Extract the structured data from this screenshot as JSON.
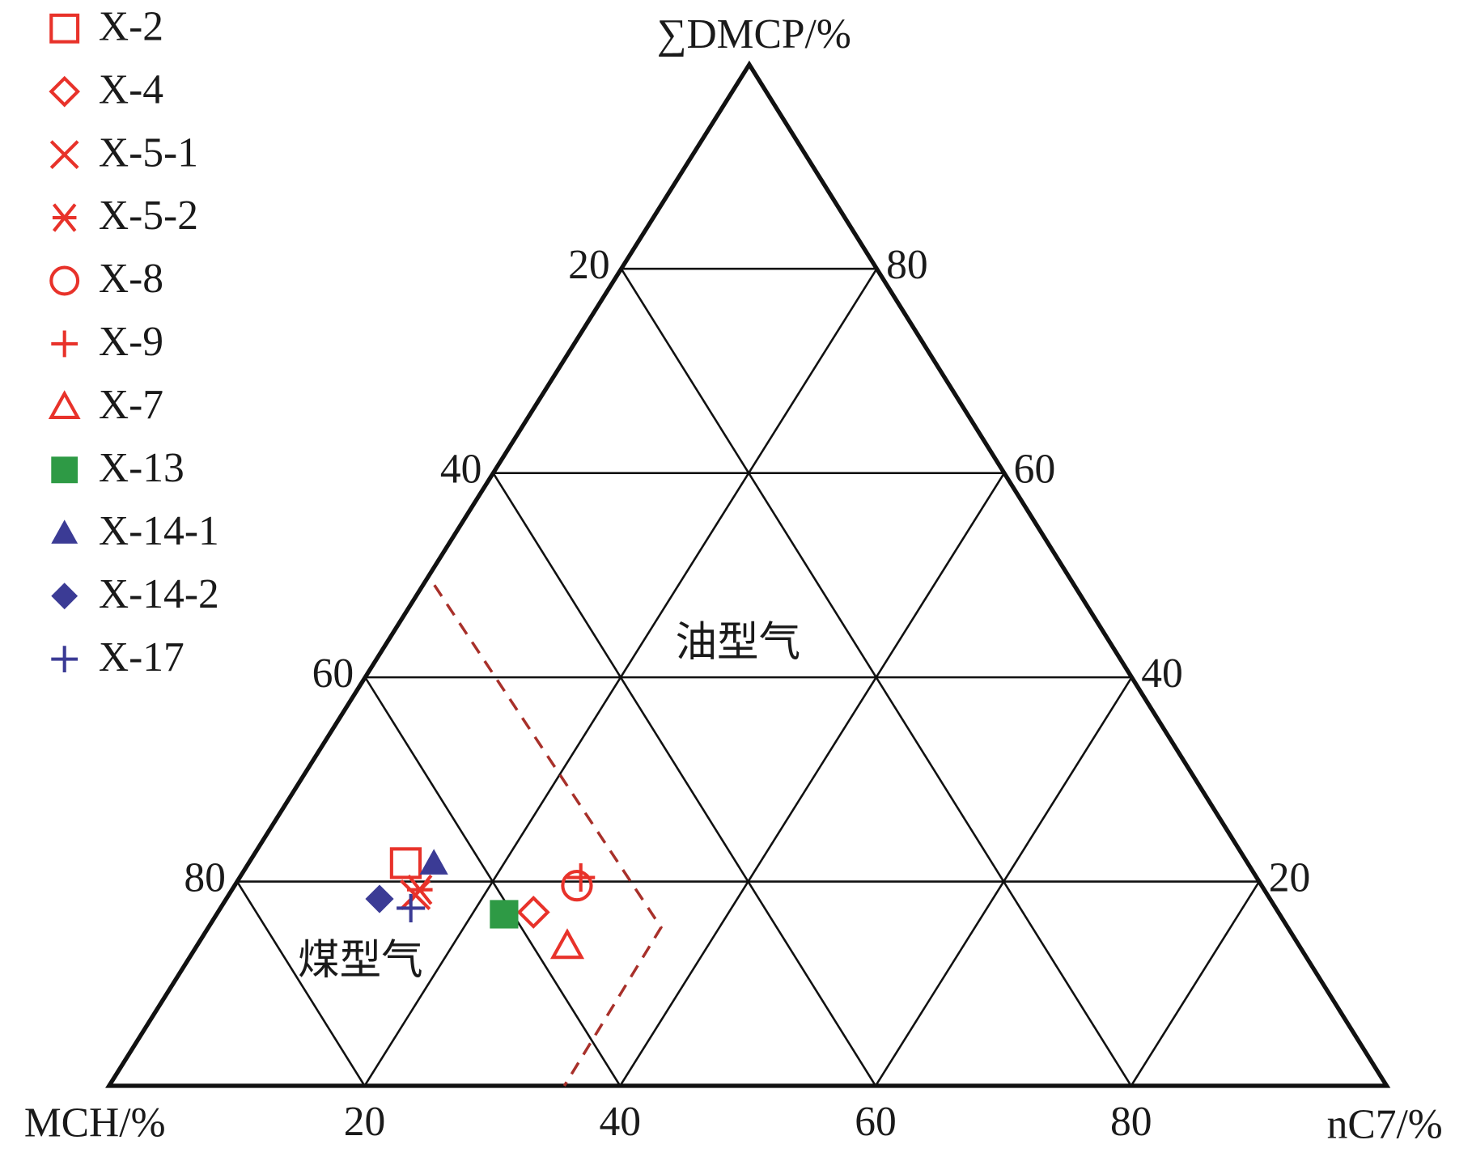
{
  "chart_data": {
    "type": "ternary",
    "axes": [
      {
        "name": "MCH/%",
        "ticks": [
          20,
          40,
          60,
          80
        ]
      },
      {
        "name": "∑DMCP/%",
        "ticks": [
          20,
          40,
          60,
          80
        ]
      },
      {
        "name": "nC7/%",
        "ticks": [
          20,
          40,
          60,
          80
        ]
      }
    ],
    "regions": [
      "油型气",
      "煤型气"
    ],
    "grid": true,
    "legend": "upper left",
    "series": [
      {
        "name": "X-2",
        "color": "#e8322a",
        "marker": "square-open",
        "values": [
          65.9,
          21.8,
          12.3
        ]
      },
      {
        "name": "X-4",
        "color": "#e8322a",
        "marker": "diamond-open",
        "values": [
          58.3,
          17.0,
          24.7
        ]
      },
      {
        "name": "X-5-1",
        "color": "#e8322a",
        "marker": "x",
        "values": [
          66.7,
          18.7,
          14.6
        ]
      },
      {
        "name": "X-5-2",
        "color": "#e8322a",
        "marker": "asterisk",
        "values": [
          66.1,
          19.2,
          14.7
        ]
      },
      {
        "name": "X-8",
        "color": "#e8322a",
        "marker": "circle-open",
        "values": [
          53.6,
          19.6,
          26.8
        ]
      },
      {
        "name": "X-9",
        "color": "#e8322a",
        "marker": "plus",
        "values": [
          52.9,
          20.4,
          26.7
        ]
      },
      {
        "name": "X-7",
        "color": "#e8322a",
        "marker": "triangle-open",
        "values": [
          57.3,
          13.7,
          29.0
        ]
      },
      {
        "name": "X-13",
        "color": "#2e9a45",
        "marker": "square",
        "values": [
          60.7,
          16.8,
          22.5
        ]
      },
      {
        "name": "X-14-1",
        "color": "#3b3b95",
        "marker": "triangle",
        "values": [
          63.7,
          21.8,
          14.5
        ]
      },
      {
        "name": "X-14-2",
        "color": "#3b3b95",
        "marker": "diamond",
        "values": [
          69.7,
          18.3,
          12.0
        ]
      },
      {
        "name": "X-17",
        "color": "#3b3b95",
        "marker": "plus",
        "values": [
          67.7,
          17.4,
          14.9
        ]
      }
    ]
  }
}
